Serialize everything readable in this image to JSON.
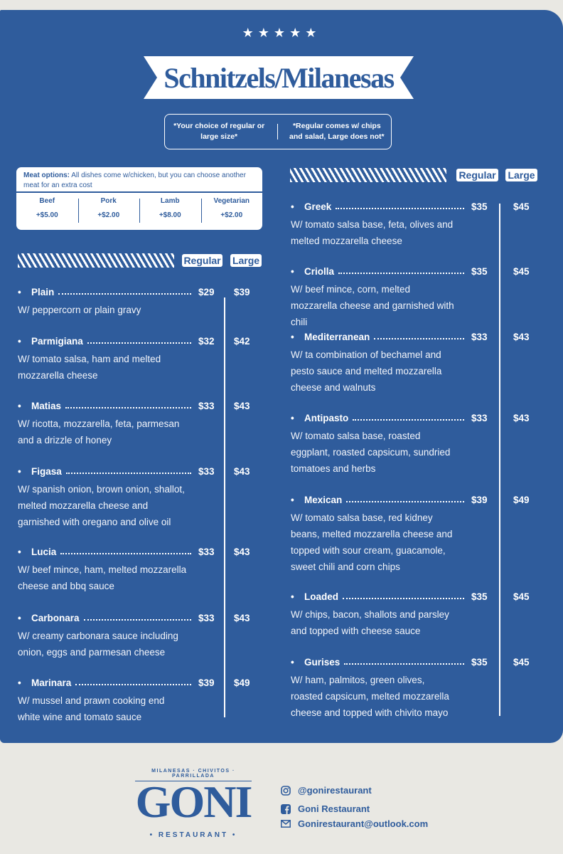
{
  "header": {
    "stars": "★★★★★",
    "title": "Schnitzels/Milanesas",
    "note_left": "*Your choice of regular or large size*",
    "note_right": "*Regular comes w/ chips and salad, Large does not*"
  },
  "meat_options": {
    "label": "Meat options:",
    "text": "All dishes come w/chicken, but you can choose another meat for an extra cost",
    "options": [
      {
        "name": "Beef",
        "price": "+$5.00"
      },
      {
        "name": "Pork",
        "price": "+$2.00"
      },
      {
        "name": "Lamb",
        "price": "+$8.00"
      },
      {
        "name": "Vegetarian",
        "price": "+$2.00"
      }
    ]
  },
  "size_labels": {
    "regular": "Regular",
    "large": "Large"
  },
  "left_items": [
    {
      "name": "Plain",
      "regular": "$29",
      "large": "$39",
      "desc": "W/ peppercorn or plain gravy"
    },
    {
      "name": "Parmigiana",
      "regular": "$32",
      "large": "$42",
      "desc": "W/ tomato salsa, ham and melted mozzarella cheese"
    },
    {
      "name": "Matias",
      "regular": "$33",
      "large": "$43",
      "desc": "W/ ricotta, mozzarella, feta, parmesan and a drizzle of honey"
    },
    {
      "name": "Figasa",
      "regular": "$33",
      "large": "$43",
      "desc": "W/ spanish onion, brown onion, shallot, melted mozzarella cheese and garnished with oregano and olive oil"
    },
    {
      "name": "Lucia",
      "regular": "$33",
      "large": "$43",
      "desc": "W/ beef mince, ham, melted mozzarella cheese and bbq sauce"
    },
    {
      "name": "Carbonara",
      "regular": "$33",
      "large": "$43",
      "desc": "W/ creamy carbonara sauce including onion, eggs and parmesan cheese"
    },
    {
      "name": "Marinara",
      "regular": "$39",
      "large": "$49",
      "desc": "W/ mussel and prawn cooking end white wine and tomato sauce"
    }
  ],
  "right_items": [
    {
      "name": "Greek",
      "regular": "$35",
      "large": "$45",
      "desc": "W/ tomato salsa base, feta, olives and melted mozzarella cheese"
    },
    {
      "name": "Criolla",
      "regular": "$35",
      "large": "$45",
      "desc": "W/ beef mince, corn, melted mozzarella cheese and garnished with chili"
    },
    {
      "name": "Mediterranean",
      "regular": "$33",
      "large": "$43",
      "desc": "W/ ta combination of bechamel and pesto sauce and melted mozzarella cheese and walnuts"
    },
    {
      "name": "Antipasto",
      "regular": "$33",
      "large": "$43",
      "desc": "W/ tomato salsa base, roasted eggplant, roasted capsicum, sundried tomatoes and herbs"
    },
    {
      "name": "Mexican",
      "regular": "$39",
      "large": "$49",
      "desc": "W/ tomato salsa base, red kidney beans, melted mozzarella cheese and topped with sour cream, guacamole, sweet chili and corn chips"
    },
    {
      "name": "Loaded",
      "regular": "$35",
      "large": "$45",
      "desc": "W/ chips, bacon, shallots and parsley and topped with cheese sauce"
    },
    {
      "name": "Gurises",
      "regular": "$35",
      "large": "$45",
      "desc": "W/ ham, palmitos, green olives, roasted capsicum, melted mozzarella cheese and topped with chivito mayo"
    }
  ],
  "footer": {
    "tagline": "MILANESAS · CHIVITOS · PARRILLADA",
    "logo_name": "GONI",
    "logo_sub": "• RESTAURANT •",
    "instagram": "@gonirestaurant",
    "facebook": "Goni Restaurant",
    "email": "Gonirestaurant@outlook.com",
    "icons": [
      "instagram-icon",
      "facebook-icon",
      "email-icon"
    ]
  }
}
